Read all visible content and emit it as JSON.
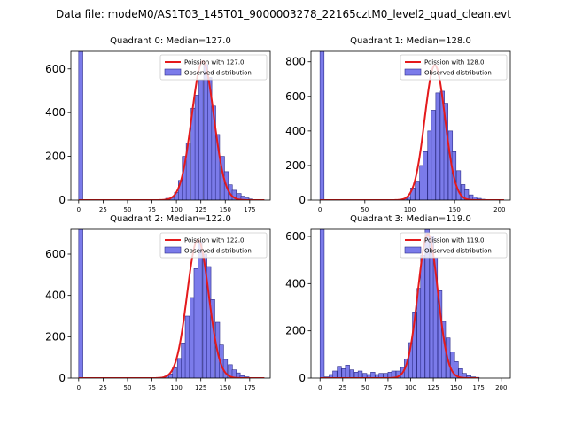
{
  "suptitle": "Data file: modeM0/AS1T03_145T01_9000003278_22165cztM0_level2_quad_clean.evt",
  "colors": {
    "hist_fill": "#7b7bea",
    "hist_edge": "#2e2e8a",
    "poisson": "#e41a1c"
  },
  "chart_data": [
    {
      "type": "bar",
      "title": "Quadrant 0: Median=127.0",
      "median": 127.0,
      "legend": [
        "Poission with 127.0",
        "Observed distribution"
      ],
      "legend_loc": "upper right",
      "xlim": [
        -8,
        196
      ],
      "ylim": [
        0,
        680
      ],
      "xticks": [
        0,
        25,
        50,
        75,
        100,
        125,
        150,
        175
      ],
      "yticks": [
        0,
        200,
        400,
        600
      ],
      "bin_width": 4.25,
      "bars": [
        [
          0,
          700
        ],
        [
          85,
          2
        ],
        [
          89,
          8
        ],
        [
          94,
          10
        ],
        [
          98,
          35
        ],
        [
          102,
          90
        ],
        [
          106,
          200
        ],
        [
          110,
          260
        ],
        [
          115,
          420
        ],
        [
          119,
          480
        ],
        [
          123,
          550
        ],
        [
          128,
          620
        ],
        [
          132,
          560
        ],
        [
          136,
          430
        ],
        [
          140,
          300
        ],
        [
          145,
          200
        ],
        [
          149,
          130
        ],
        [
          153,
          70
        ],
        [
          157,
          45
        ],
        [
          162,
          30
        ],
        [
          166,
          18
        ],
        [
          170,
          10
        ],
        [
          174,
          5
        ],
        [
          179,
          2
        ]
      ],
      "poisson_mean": 127.0,
      "poisson_peak": 635,
      "curve_x": [
        0,
        80,
        190
      ]
    },
    {
      "type": "bar",
      "title": "Quadrant 1: Median=128.0",
      "median": 128.0,
      "legend": [
        "Poission with 128.0",
        "Observed distribution"
      ],
      "legend_loc": "upper right",
      "xlim": [
        -10,
        212
      ],
      "ylim": [
        0,
        860
      ],
      "xticks": [
        0,
        50,
        100,
        150,
        200
      ],
      "yticks": [
        0,
        200,
        400,
        600,
        800
      ],
      "bin_width": 4.6,
      "bars": [
        [
          0,
          880
        ],
        [
          88,
          2
        ],
        [
          92,
          8
        ],
        [
          97,
          20
        ],
        [
          101,
          70
        ],
        [
          106,
          110
        ],
        [
          111,
          200
        ],
        [
          115,
          280
        ],
        [
          120,
          400
        ],
        [
          124,
          520
        ],
        [
          129,
          620
        ],
        [
          134,
          630
        ],
        [
          138,
          560
        ],
        [
          143,
          400
        ],
        [
          147,
          280
        ],
        [
          152,
          170
        ],
        [
          157,
          90
        ],
        [
          161,
          60
        ],
        [
          166,
          30
        ],
        [
          170,
          18
        ],
        [
          175,
          10
        ],
        [
          180,
          5
        ],
        [
          184,
          2
        ]
      ],
      "poisson_mean": 128.0,
      "poisson_peak": 780,
      "curve_x": [
        0,
        80,
        205
      ]
    },
    {
      "type": "bar",
      "title": "Quadrant 2: Median=122.0",
      "median": 122.0,
      "legend": [
        "Poission with 122.0",
        "Observed distribution"
      ],
      "legend_loc": "upper right",
      "xlim": [
        -8,
        196
      ],
      "ylim": [
        0,
        720
      ],
      "xticks": [
        0,
        25,
        50,
        75,
        100,
        125,
        150,
        175
      ],
      "yticks": [
        0,
        200,
        400,
        600
      ],
      "bin_width": 4.3,
      "bars": [
        [
          0,
          750
        ],
        [
          84,
          3
        ],
        [
          88,
          10
        ],
        [
          92,
          20
        ],
        [
          96,
          50
        ],
        [
          101,
          95
        ],
        [
          105,
          170
        ],
        [
          109,
          300
        ],
        [
          114,
          390
        ],
        [
          118,
          530
        ],
        [
          122,
          660
        ],
        [
          127,
          600
        ],
        [
          131,
          540
        ],
        [
          135,
          380
        ],
        [
          140,
          270
        ],
        [
          144,
          160
        ],
        [
          148,
          90
        ],
        [
          153,
          65
        ],
        [
          157,
          40
        ],
        [
          161,
          25
        ],
        [
          165,
          12
        ],
        [
          170,
          6
        ],
        [
          174,
          3
        ]
      ],
      "poisson_mean": 122.0,
      "poisson_peak": 670,
      "curve_x": [
        0,
        80,
        190
      ]
    },
    {
      "type": "bar",
      "title": "Quadrant 3: Median=119.0",
      "median": 119.0,
      "legend": [
        "Poission with 119.0",
        "Observed distribution"
      ],
      "legend_loc": "upper right",
      "xlim": [
        -10,
        210
      ],
      "ylim": [
        0,
        630
      ],
      "xticks": [
        0,
        25,
        50,
        75,
        100,
        125,
        150,
        175,
        200
      ],
      "yticks": [
        0,
        200,
        400,
        600
      ],
      "bin_width": 4.6,
      "bars": [
        [
          0,
          650
        ],
        [
          5,
          5
        ],
        [
          10,
          15
        ],
        [
          14,
          30
        ],
        [
          19,
          50
        ],
        [
          24,
          40
        ],
        [
          28,
          55
        ],
        [
          33,
          35
        ],
        [
          38,
          25
        ],
        [
          42,
          30
        ],
        [
          47,
          20
        ],
        [
          52,
          15
        ],
        [
          56,
          25
        ],
        [
          61,
          15
        ],
        [
          65,
          20
        ],
        [
          70,
          20
        ],
        [
          75,
          25
        ],
        [
          79,
          30
        ],
        [
          84,
          30
        ],
        [
          89,
          45
        ],
        [
          93,
          80
        ],
        [
          98,
          150
        ],
        [
          102,
          280
        ],
        [
          107,
          380
        ],
        [
          111,
          520
        ],
        [
          116,
          630
        ],
        [
          121,
          600
        ],
        [
          125,
          510
        ],
        [
          130,
          370
        ],
        [
          134,
          240
        ],
        [
          139,
          170
        ],
        [
          144,
          110
        ],
        [
          148,
          70
        ],
        [
          153,
          40
        ],
        [
          157,
          20
        ],
        [
          162,
          10
        ],
        [
          167,
          5
        ],
        [
          171,
          3
        ]
      ],
      "poisson_mean": 119.0,
      "poisson_peak": 610,
      "curve_x": [
        0,
        75,
        175
      ]
    }
  ]
}
